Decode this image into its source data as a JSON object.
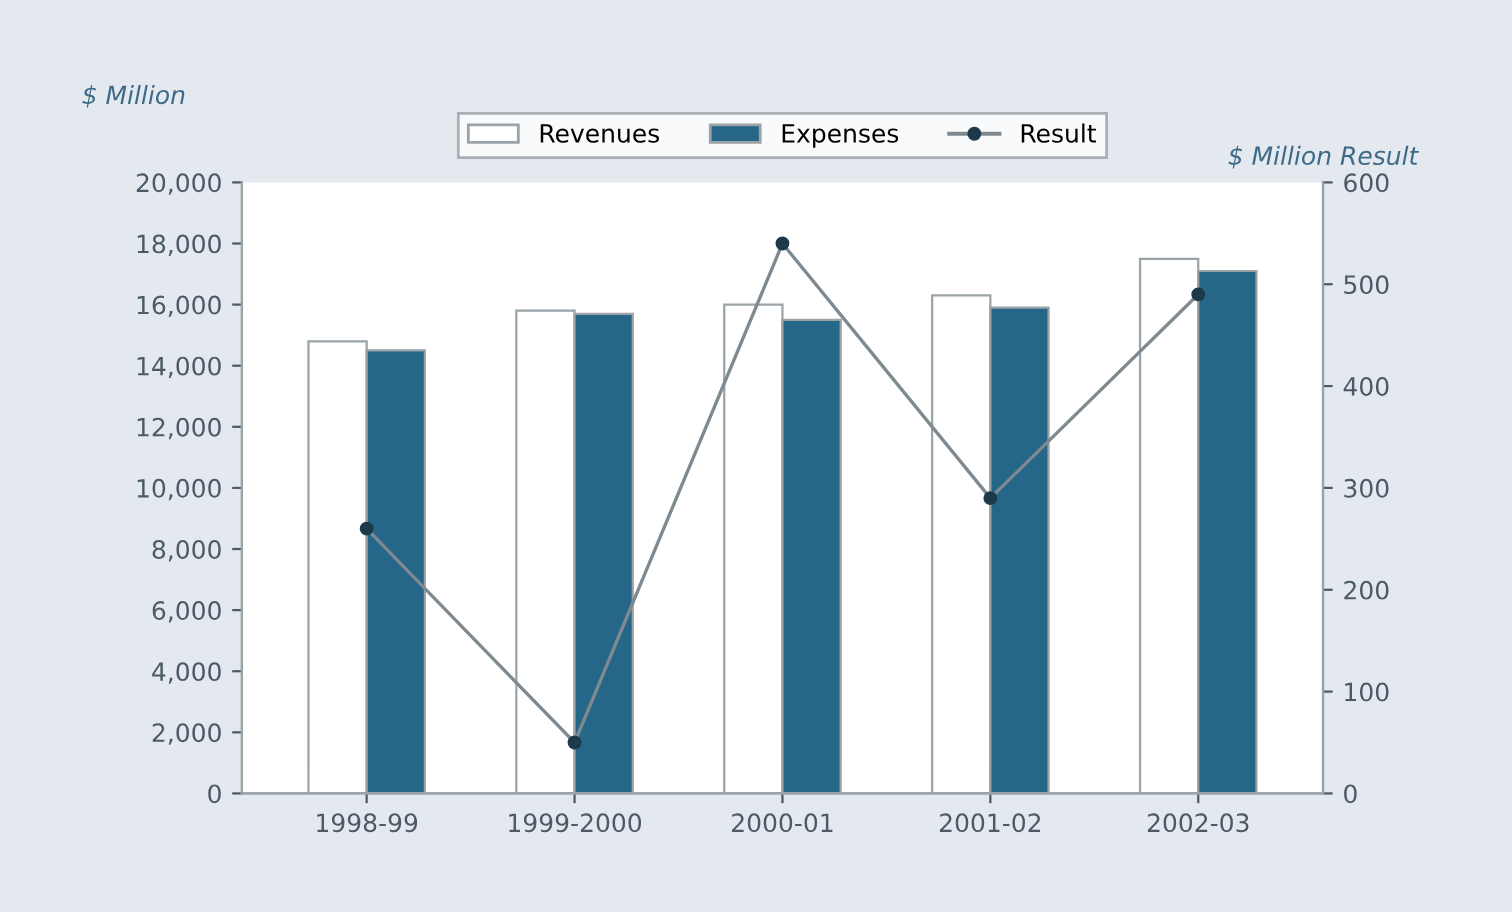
{
  "chart_data": {
    "type": "bar",
    "ylabel": "$ Million",
    "y2label": "$ Million Result",
    "categories": [
      "1998-99",
      "1999-2000",
      "2000-01",
      "2001-02",
      "2002-03"
    ],
    "series": [
      {
        "name": "Revenues",
        "color": "#ffffff",
        "values": [
          14800,
          15800,
          16000,
          16300,
          17500
        ]
      },
      {
        "name": "Expenses",
        "color": "#266688",
        "values": [
          14500,
          15700,
          15500,
          15900,
          17100
        ]
      },
      {
        "name": "Result",
        "type": "line",
        "axis": "y2",
        "color": "#7f8a90",
        "marker": "circle",
        "values": [
          260,
          50,
          540,
          290,
          490
        ]
      }
    ],
    "ylim": [
      0,
      20000
    ],
    "yticks": [
      {
        "value": 0,
        "label": "0"
      },
      {
        "value": 2000,
        "label": "2,000"
      },
      {
        "value": 4000,
        "label": "4,000"
      },
      {
        "value": 6000,
        "label": "6,000"
      },
      {
        "value": 8000,
        "label": "8,000"
      },
      {
        "value": 10000,
        "label": "10,000"
      },
      {
        "value": 12000,
        "label": "12,000"
      },
      {
        "value": 14000,
        "label": "14,000"
      },
      {
        "value": 16000,
        "label": "16,000"
      },
      {
        "value": 18000,
        "label": "18,000"
      },
      {
        "value": 20000,
        "label": "20,000"
      }
    ],
    "y2lim": [
      0,
      600
    ],
    "y2ticks": [
      0,
      100,
      200,
      300,
      400,
      500,
      600
    ],
    "grid": false,
    "legend": "top"
  }
}
